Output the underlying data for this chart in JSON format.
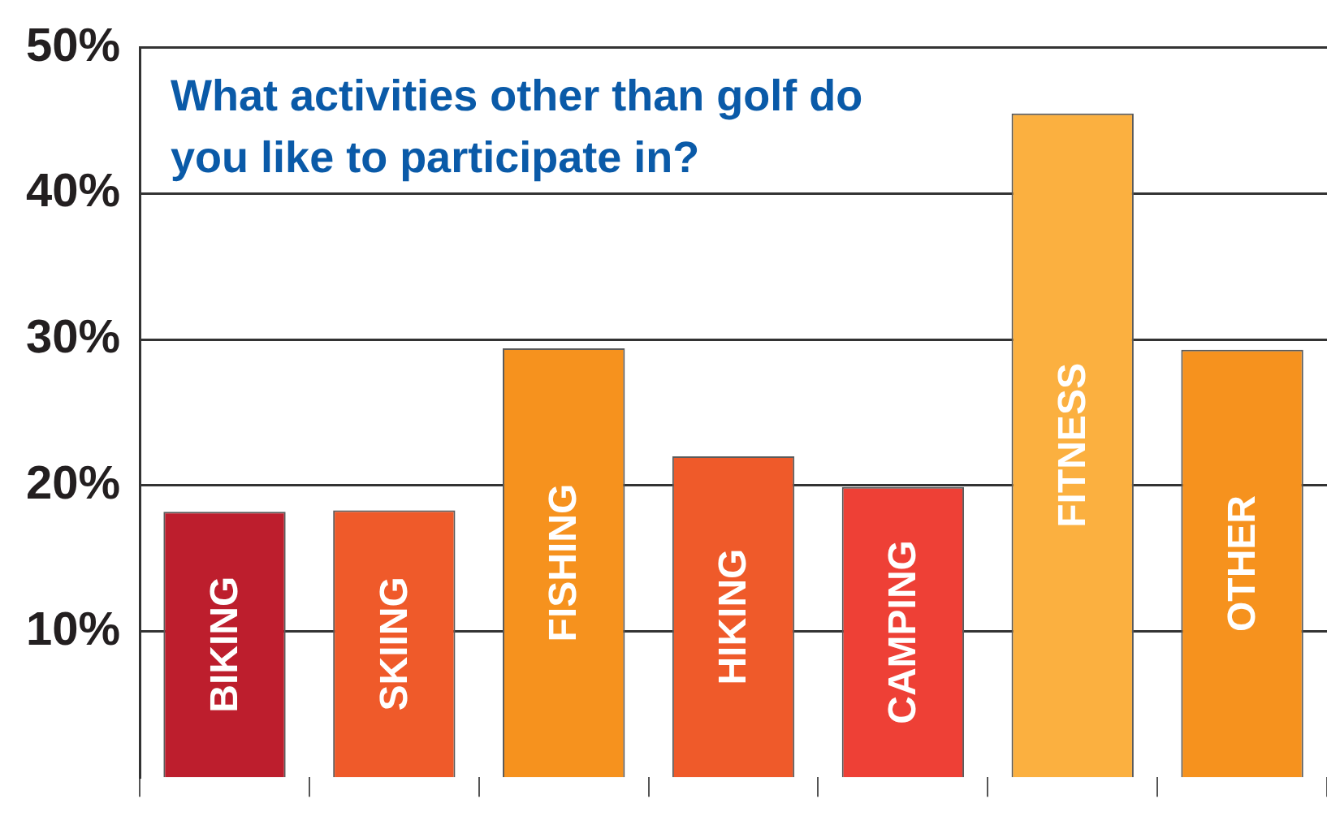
{
  "chart_data": {
    "type": "bar",
    "title": "What activities other than golf do you like to participate in?",
    "categories": [
      "BIKING",
      "SKIING",
      "FISHING",
      "HIKING",
      "CAMPING",
      "FITNESS",
      "OTHER"
    ],
    "values": [
      18.2,
      18.3,
      29.4,
      22.0,
      19.9,
      45.5,
      29.3
    ],
    "colors": [
      "#bd1e2d",
      "#ef5a2a",
      "#f6921e",
      "#ef5a2a",
      "#ee4036",
      "#fbb040",
      "#f6921e"
    ],
    "ylim": [
      0,
      50
    ],
    "yticks": [
      {
        "value": 10,
        "label": "10%"
      },
      {
        "value": 20,
        "label": "20%"
      },
      {
        "value": 30,
        "label": "30%"
      },
      {
        "value": 40,
        "label": "40%"
      },
      {
        "value": 50,
        "label": "50%"
      }
    ],
    "grid": "y"
  }
}
